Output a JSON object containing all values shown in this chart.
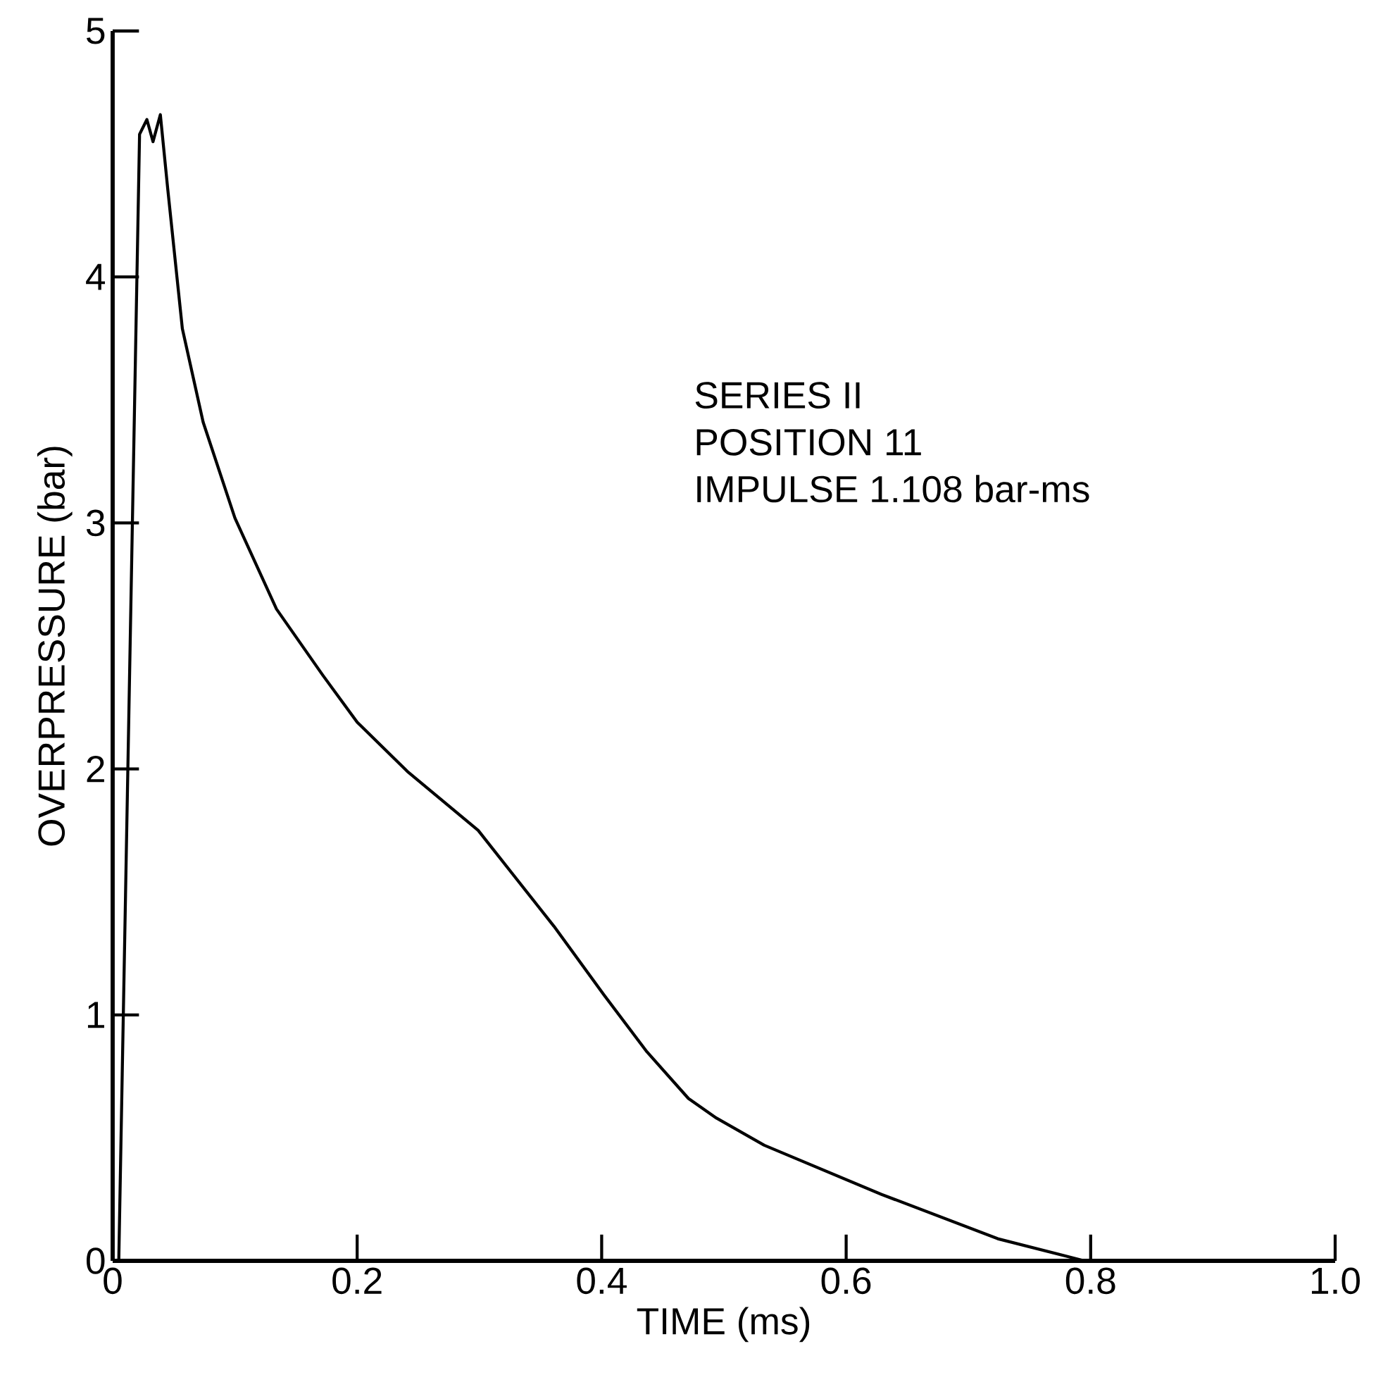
{
  "chart_data": {
    "type": "line",
    "xlabel": "TIME (ms)",
    "ylabel": "OVERPRESSURE (bar)",
    "annotations": [
      "SERIES II",
      "POSITION 11",
      "IMPULSE 1.108 bar-ms"
    ],
    "xlim": [
      0,
      1
    ],
    "ylim": [
      0,
      5
    ],
    "xticks": [
      0,
      0.2,
      0.4,
      0.6,
      {
        "value": 0.8,
        "label": "0.8"
      },
      {
        "value": 1,
        "label": "1.0"
      }
    ],
    "yticks": [
      0,
      1,
      2,
      3,
      4,
      5
    ],
    "series": [
      {
        "color": "#000000",
        "x": [
          0.0,
          0.005,
          0.022,
          0.028,
          0.033,
          0.039,
          0.045,
          0.057,
          0.074,
          0.1,
          0.134,
          0.172,
          0.2,
          0.241,
          0.299,
          0.326,
          0.361,
          0.402,
          0.437,
          0.471,
          0.494,
          0.533,
          0.629,
          0.724,
          0.795
        ],
        "values": [
          0.0,
          0.0,
          4.58,
          4.64,
          4.55,
          4.66,
          4.36,
          3.79,
          3.41,
          3.02,
          2.65,
          2.38,
          2.19,
          1.99,
          1.75,
          1.58,
          1.36,
          1.08,
          0.85,
          0.66,
          0.58,
          0.47,
          0.27,
          0.09,
          0.0
        ]
      }
    ]
  }
}
